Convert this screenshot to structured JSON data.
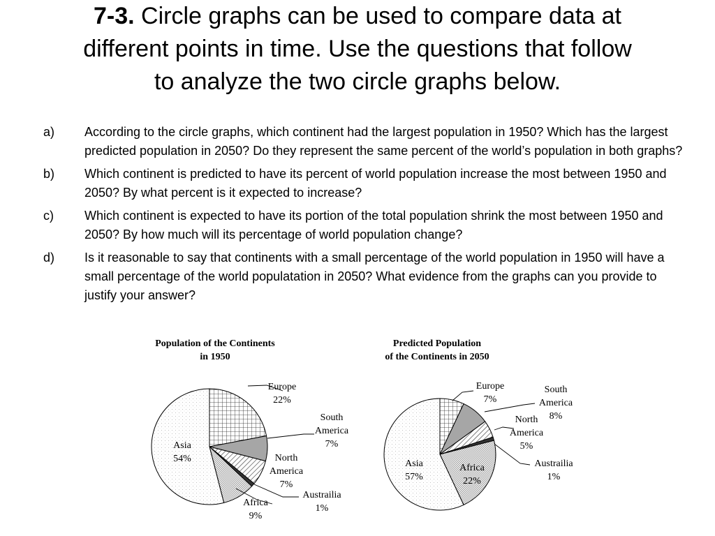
{
  "heading": {
    "number": "7-3.",
    "line1": "Circle graphs can be used to compare data at",
    "line2": "different points in time.  Use the questions that follow",
    "line3": "to analyze the two circle graphs below."
  },
  "questions": [
    {
      "label": "a)",
      "text": "According to the circle graphs, which continent had the largest population in 1950?  Which has the largest predicted population in 2050?  Do they represent the same percent of the world’s population in both graphs?"
    },
    {
      "label": "b)",
      "text": "Which continent is predicted to have its percent of world population increase the most between 1950 and 2050?  By what percent is it expected to increase?"
    },
    {
      "label": "c)",
      "text": "Which continent is expected to have its portion of the total population shrink the most between 1950 and 2050?  By how much will its percentage of world population change?"
    },
    {
      "label": "d)",
      "text": "Is it reasonable to say that continents with a small percentage of the world population in 1950 will have a small percentage of the world populatation in 2050?  What evidence from the graphs can you provide to justify your answer?"
    }
  ],
  "chart_data": [
    {
      "type": "pie",
      "title": "Population of the Continents in 1950",
      "title_line1": "Population of the Continents",
      "title_line2": "in 1950",
      "slices": [
        {
          "name": "Europe",
          "value": 22,
          "label": "22%"
        },
        {
          "name": "South America",
          "value": 7,
          "label": "7%"
        },
        {
          "name": "North America",
          "value": 7,
          "label": "7%"
        },
        {
          "name": "Austrailia",
          "value": 1,
          "label": "1%"
        },
        {
          "name": "Africa",
          "value": 9,
          "label": "9%"
        },
        {
          "name": "Asia",
          "value": 54,
          "label": "54%"
        }
      ]
    },
    {
      "type": "pie",
      "title": "Predicted Population of the Continents in 2050",
      "title_line1": "Predicted Population",
      "title_line2": "of the Continents in 2050",
      "slices": [
        {
          "name": "Europe",
          "value": 7,
          "label": "7%"
        },
        {
          "name": "South America",
          "value": 8,
          "label": "8%"
        },
        {
          "name": "North America",
          "value": 5,
          "label": "5%"
        },
        {
          "name": "Austrailia",
          "value": 1,
          "label": "1%"
        },
        {
          "name": "Africa",
          "value": 22,
          "label": "22%"
        },
        {
          "name": "Asia",
          "value": 57,
          "label": "57%"
        }
      ]
    }
  ],
  "slice_fills": {
    "Europe": "grid",
    "South America": "#a6a6a6",
    "North America": "hatch",
    "Austrailia": "#333333",
    "Africa": "dots-dense",
    "Asia": "dots-light"
  }
}
